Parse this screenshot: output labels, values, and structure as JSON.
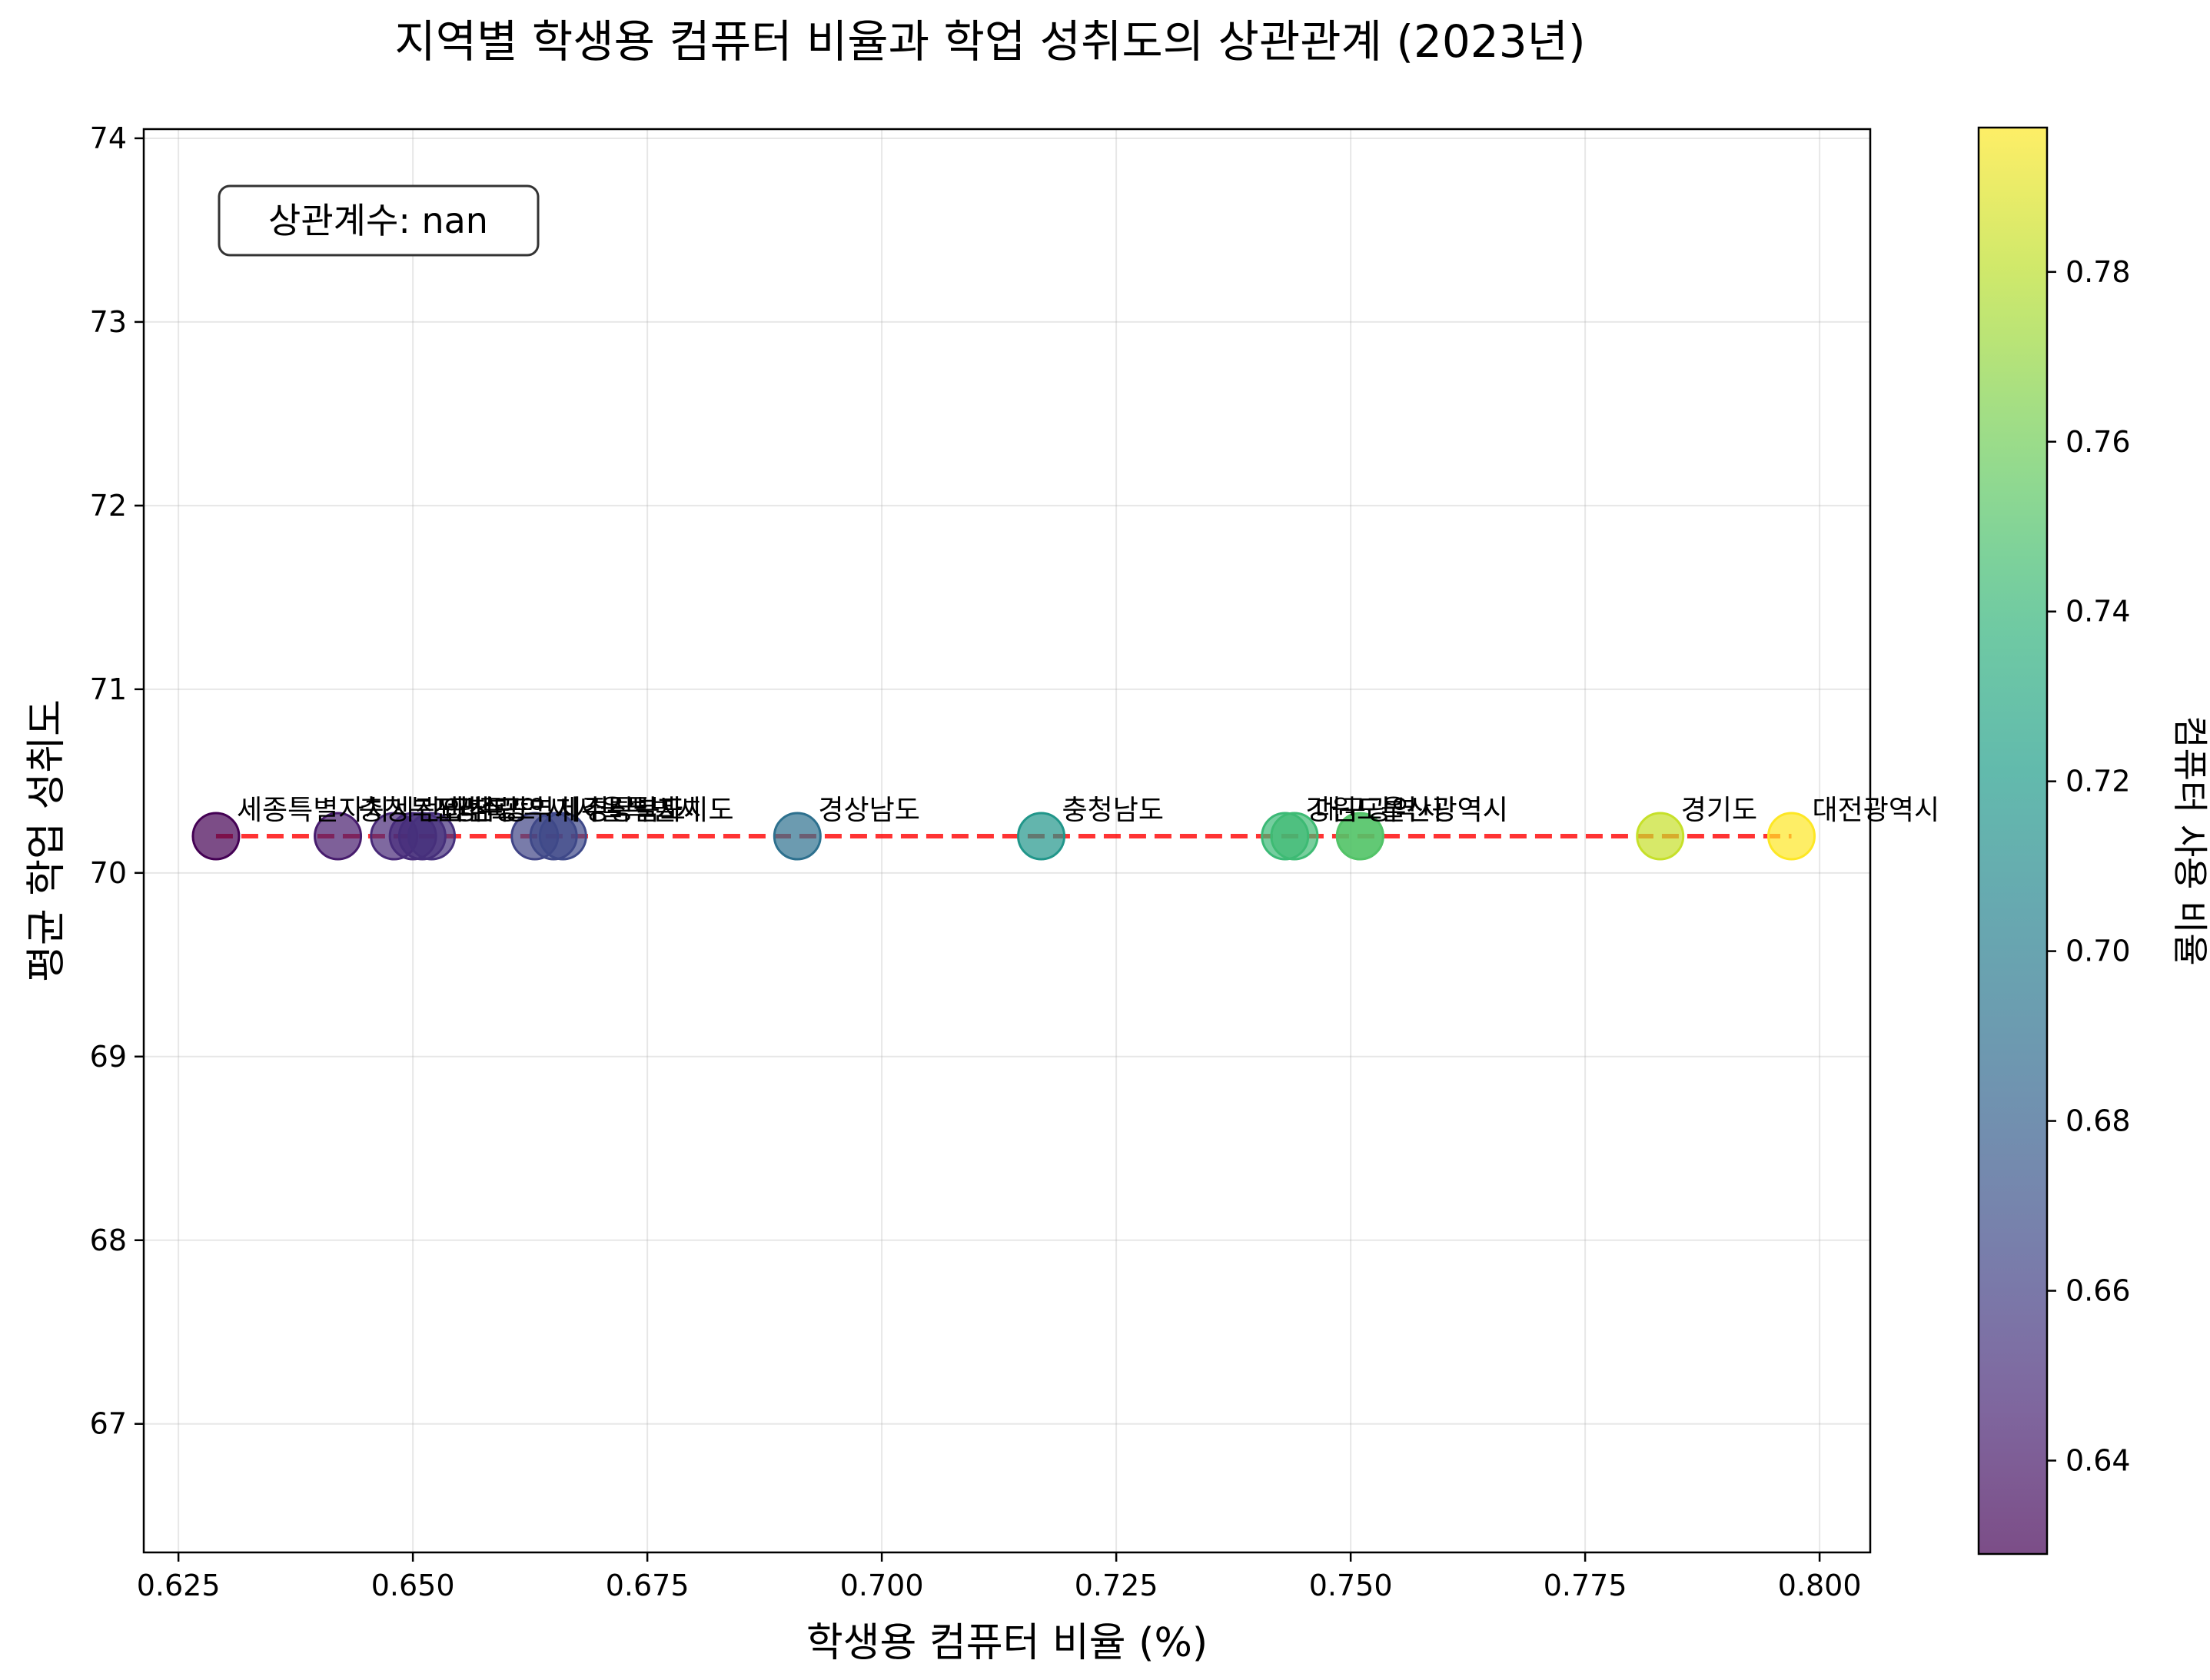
{
  "chart_data": {
    "type": "scatter",
    "title": "지역별 학생용 컴퓨터 비율과 학업 성취도의 상관관계 (2023년)",
    "xlabel": "학생용 컴퓨터 비율 (%)",
    "ylabel": "평균 학업 성취도",
    "xlim": [
      0.6213,
      0.8054
    ],
    "ylim": [
      66.3,
      74.05
    ],
    "xticks": [
      0.625,
      0.65,
      0.675,
      0.7,
      0.725,
      0.75,
      0.775,
      0.8
    ],
    "xtick_labels": [
      "0.625",
      "0.650",
      "0.675",
      "0.700",
      "0.725",
      "0.750",
      "0.775",
      "0.800"
    ],
    "yticks": [
      67,
      68,
      69,
      70,
      71,
      72,
      73,
      74
    ],
    "ytick_labels": [
      "67",
      "68",
      "69",
      "70",
      "71",
      "72",
      "73",
      "74"
    ],
    "grid": true,
    "annotation": "상관계수: nan",
    "colormap": "viridis",
    "colorbar": {
      "label": "컴퓨터 사용 비율",
      "range": [
        0.629,
        0.797
      ],
      "ticks": [
        0.64,
        0.66,
        0.68,
        0.7,
        0.72,
        0.74,
        0.76,
        0.78
      ],
      "tick_labels": [
        "0.64",
        "0.66",
        "0.68",
        "0.70",
        "0.72",
        "0.74",
        "0.76",
        "0.78"
      ]
    },
    "trendline": {
      "x": [
        0.629,
        0.797
      ],
      "y": [
        70.2,
        70.2
      ],
      "color": "#ff0000",
      "style": "dashed"
    },
    "points": [
      {
        "label": "세종특별자치시",
        "x": 0.629,
        "y": 70.2
      },
      {
        "label": "충청북도",
        "x": 0.642,
        "y": 70.2
      },
      {
        "label": "전라남도",
        "x": 0.648,
        "y": 70.2
      },
      {
        "label": "전라북도",
        "x": 0.65,
        "y": 70.2
      },
      {
        "label": "인천광역시",
        "x": 0.651,
        "y": 70.2
      },
      {
        "label": "광주광역시",
        "x": 0.652,
        "y": 70.2
      },
      {
        "label": "제주특별자치도",
        "x": 0.663,
        "y": 70.2
      },
      {
        "label": "서울특별시",
        "x": 0.665,
        "y": 70.2
      },
      {
        "label": "경상북도",
        "x": 0.666,
        "y": 70.2
      },
      {
        "label": "경상남도",
        "x": 0.691,
        "y": 70.2
      },
      {
        "label": "충청남도",
        "x": 0.717,
        "y": 70.2
      },
      {
        "label": "강원도",
        "x": 0.743,
        "y": 70.2
      },
      {
        "label": "대구광역시",
        "x": 0.744,
        "y": 70.2
      },
      {
        "label": "울산광역시",
        "x": 0.751,
        "y": 70.2
      },
      {
        "label": "부산광역시",
        "x": 0.751,
        "y": 70.2
      },
      {
        "label": "경기도",
        "x": 0.783,
        "y": 70.2
      },
      {
        "label": "대전광역시",
        "x": 0.797,
        "y": 70.2
      }
    ]
  }
}
